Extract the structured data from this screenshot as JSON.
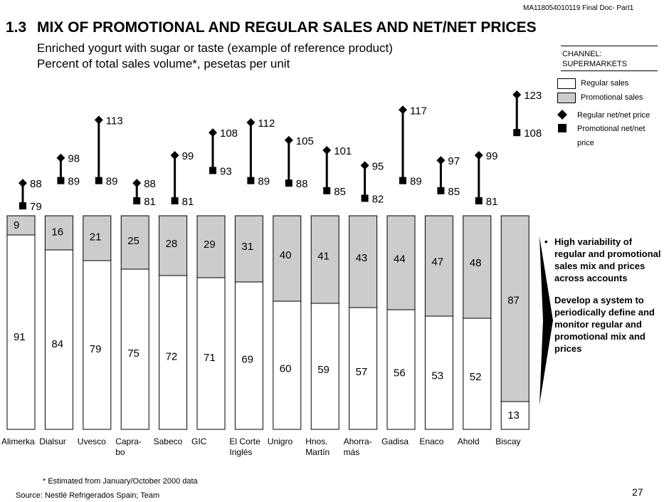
{
  "header": {
    "doc_id": "MA118054010119 Final Doc- Part1",
    "section": "1.3",
    "title": "MIX OF PROMOTIONAL AND REGULAR SALES AND NET/NET PRICES",
    "subtitle1": "Enriched yogurt with sugar or taste (example of reference product)",
    "subtitle2": "Percent of total sales volume*, pesetas per unit"
  },
  "channel": {
    "line1": "CHANNEL:",
    "line2": "SUPERMARKETS"
  },
  "legend": {
    "regular_sales": "Regular sales",
    "promotional_sales": "Promotional sales",
    "regular_price": "Regular net/net price",
    "promo_price_line1": "Promotional net/net",
    "promo_price_line2": "price"
  },
  "colors": {
    "regular_fill": "#ffffff",
    "promotional_fill": "#cccccc",
    "marker": "#000000"
  },
  "chart_data": {
    "type": "bar",
    "stacked": true,
    "categories": [
      [
        "Alimerka"
      ],
      [
        "Dialsur"
      ],
      [
        "Uvesco"
      ],
      [
        "Capra-",
        "bo"
      ],
      [
        "Sabeco"
      ],
      [
        "GIC"
      ],
      [
        "El Corte",
        "Inglés"
      ],
      [
        "Unigro"
      ],
      [
        "Hnos.",
        "Martín"
      ],
      [
        "Ahorra-",
        "más"
      ],
      [
        "Gadisa"
      ],
      [
        "Enaco"
      ],
      [
        "Ahold"
      ],
      [
        "Biscay"
      ]
    ],
    "series": [
      {
        "name": "Regular sales",
        "values": [
          91,
          84,
          79,
          75,
          72,
          71,
          69,
          60,
          59,
          57,
          56,
          53,
          52,
          13
        ]
      },
      {
        "name": "Promotional sales",
        "values": [
          9,
          16,
          21,
          25,
          28,
          29,
          31,
          40,
          41,
          43,
          44,
          47,
          48,
          87
        ]
      }
    ],
    "prices": {
      "regular": [
        88,
        98,
        113,
        88,
        99,
        108,
        112,
        105,
        101,
        95,
        117,
        97,
        99,
        123
      ],
      "promotional": [
        79,
        89,
        89,
        81,
        81,
        93,
        89,
        88,
        85,
        82,
        89,
        85,
        81,
        108
      ]
    },
    "ylim": [
      0,
      100
    ],
    "price_range": [
      70,
      130
    ]
  },
  "bullets": [
    "High variability of regular and promotional sales mix and prices across accounts",
    "Develop a system to periodically define and monitor regular and promotional mix and prices"
  ],
  "footnote": "* Estimated from January/October 2000 data",
  "source_label": "Source:",
  "source_text": "Nestlé Refrigerados Spain; Team",
  "page_number": "27"
}
